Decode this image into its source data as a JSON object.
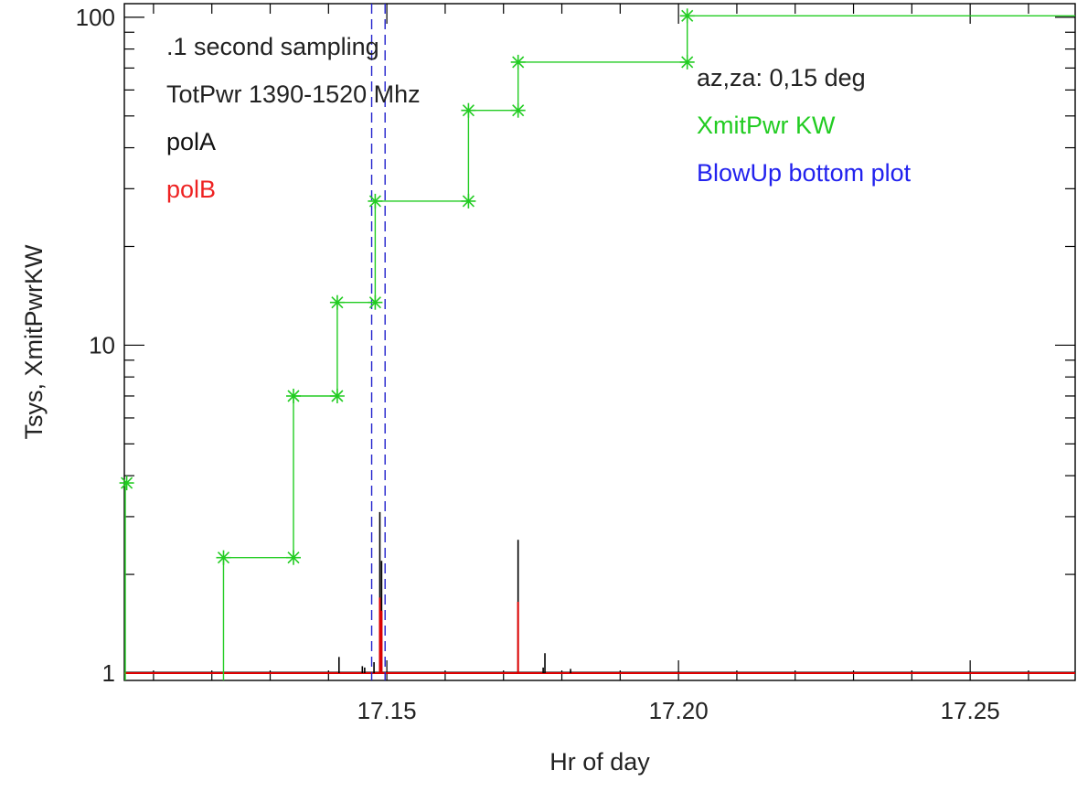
{
  "chart_data": {
    "type": "line",
    "xlabel": "Hr of day",
    "ylabel": "Tsys, XmitPwrKW",
    "xlim": [
      17.105,
      17.268
    ],
    "ylim": [
      0.95,
      110
    ],
    "y_scale": "log",
    "grid": false,
    "x_ticks": [
      {
        "value": 17.15,
        "label": "17.15"
      },
      {
        "value": 17.2,
        "label": "17.20"
      },
      {
        "value": 17.25,
        "label": "17.25"
      }
    ],
    "y_ticks": [
      {
        "value": 1,
        "label": "1"
      },
      {
        "value": 10,
        "label": "10"
      },
      {
        "value": 100,
        "label": "100"
      }
    ],
    "annotations_left": [
      {
        "text": ".1 second sampling",
        "color": "#222222"
      },
      {
        "text": "TotPwr 1390-1520 Mhz",
        "color": "#222222"
      },
      {
        "text": "polA",
        "color": "#111111"
      },
      {
        "text": "polB",
        "color": "#ee2222"
      }
    ],
    "annotations_right": [
      {
        "text": "az,za: 0,15 deg",
        "color": "#222222"
      },
      {
        "text": "XmitPwr KW",
        "color": "#22cc22"
      },
      {
        "text": "BlowUp bottom plot",
        "color": "#2222ee"
      }
    ],
    "colors": {
      "polA": "#000000",
      "polB": "#dd0000",
      "xmit": "#22cc22",
      "blowup": "#2222cc",
      "axis": "#000000"
    },
    "series": [
      {
        "key": "xmit",
        "style": "step-markers",
        "points": [
          {
            "x": 17.1054,
            "y": 3.8
          },
          {
            "x": 17.122,
            "y": 2.25
          },
          {
            "x": 17.134,
            "y": 2.25
          },
          {
            "x": 17.134,
            "y": 7.0
          },
          {
            "x": 17.1415,
            "y": 7.0
          },
          {
            "x": 17.1415,
            "y": 13.5
          },
          {
            "x": 17.148,
            "y": 13.5
          },
          {
            "x": 17.148,
            "y": 27.5
          },
          {
            "x": 17.164,
            "y": 27.5
          },
          {
            "x": 17.164,
            "y": 52
          },
          {
            "x": 17.1725,
            "y": 52
          },
          {
            "x": 17.1725,
            "y": 73
          },
          {
            "x": 17.2015,
            "y": 73
          },
          {
            "x": 17.2015,
            "y": 101
          }
        ],
        "extend_to": 17.268,
        "extend_y": 101
      },
      {
        "key": "polA",
        "style": "spikes",
        "baseline": 1.0,
        "spikes": [
          {
            "x": 17.1418,
            "y": 1.12
          },
          {
            "x": 17.1458,
            "y": 1.05
          },
          {
            "x": 17.1462,
            "y": 1.04
          },
          {
            "x": 17.1478,
            "y": 1.08
          },
          {
            "x": 17.1488,
            "y": 3.1
          },
          {
            "x": 17.1491,
            "y": 2.2
          },
          {
            "x": 17.1725,
            "y": 2.55
          },
          {
            "x": 17.1768,
            "y": 1.04
          },
          {
            "x": 17.1771,
            "y": 1.15
          },
          {
            "x": 17.1815,
            "y": 1.03
          }
        ]
      },
      {
        "key": "polB",
        "style": "spikes",
        "baseline": 1.0,
        "spikes": [
          {
            "x": 17.1488,
            "y": 1.7
          },
          {
            "x": 17.1491,
            "y": 1.55
          },
          {
            "x": 17.1725,
            "y": 1.65
          }
        ]
      }
    ],
    "vlines": [
      {
        "x": 17.1474,
        "key": "blowup"
      },
      {
        "x": 17.1497,
        "key": "blowup"
      }
    ]
  }
}
